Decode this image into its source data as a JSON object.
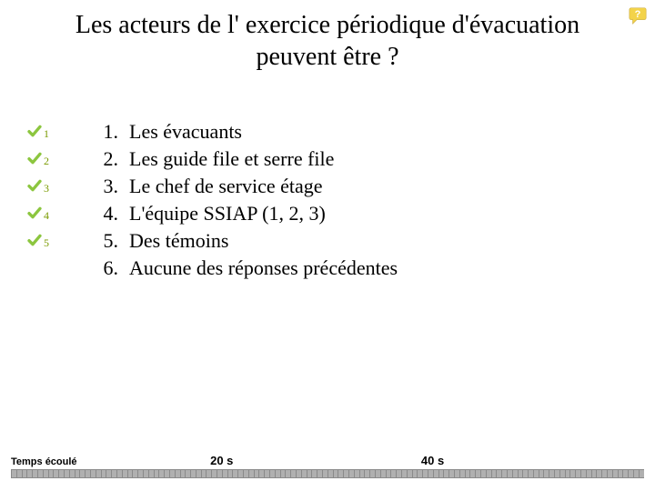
{
  "title_line1": "Les acteurs de l' exercice périodique d'évacuation",
  "title_line2": "peuvent être ?",
  "checks": [
    {
      "num": "1"
    },
    {
      "num": "2"
    },
    {
      "num": "3"
    },
    {
      "num": "4"
    },
    {
      "num": "5"
    }
  ],
  "check_color": "#8cc63f",
  "check_num_color": "#7a9a00",
  "answers": [
    {
      "n": "1.",
      "text": "Les évacuants"
    },
    {
      "n": "2.",
      "text": "Les guide file et serre file"
    },
    {
      "n": "3.",
      "text": "Le chef de service étage"
    },
    {
      "n": "4.",
      "text": "L'équipe SSIAP (1, 2, 3)"
    },
    {
      "n": "5.",
      "text": "Des témoins"
    },
    {
      "n": "6.",
      "text": "Aucune des réponses précédentes"
    }
  ],
  "timer": {
    "elapsed_label": "Temps écoulé",
    "tick1_label": "20 s",
    "tick1_pos_pct": 33.3,
    "tick2_label": "40 s",
    "tick2_pos_pct": 66.6,
    "segments": 120,
    "seg_fill": "#b0b0b0",
    "seg_border": "#8a8a8a",
    "label_color": "#000000"
  },
  "corner_icon": {
    "bubble_fill": "#f3d34a",
    "bubble_stroke": "#c9a93a",
    "q_color": "#ffffff"
  },
  "typography": {
    "title_fontsize": 28,
    "answer_fontsize": 22,
    "check_num_fontsize": 12,
    "timer_label_fontsize": 11,
    "timer_tick_fontsize": 13
  },
  "colors": {
    "background": "#ffffff",
    "text": "#000000"
  }
}
